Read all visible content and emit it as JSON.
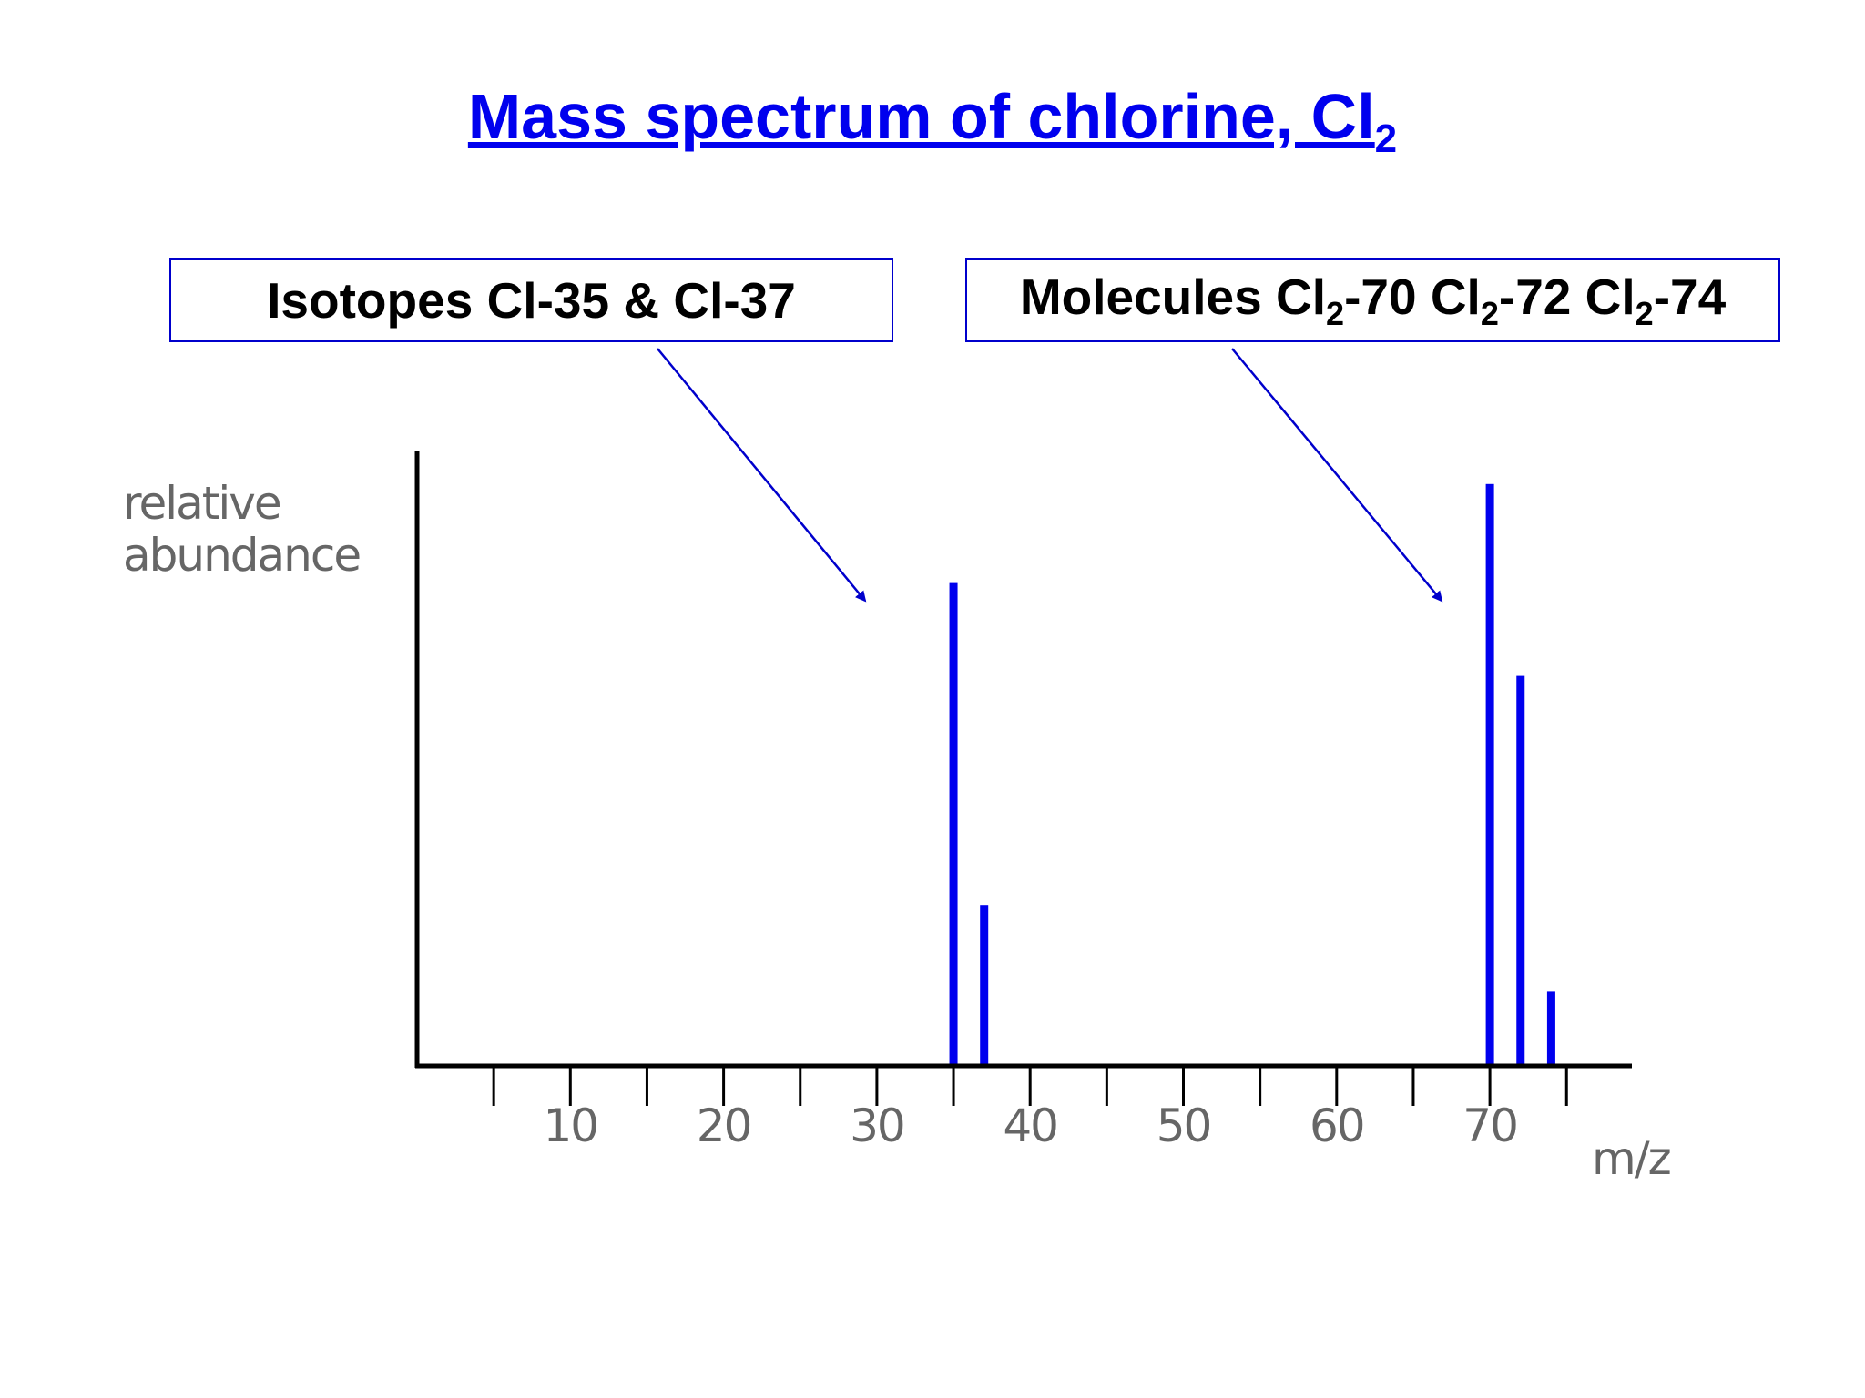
{
  "title": {
    "main": "Mass spectrum of chlorine, Cl",
    "sub": "2"
  },
  "callouts": {
    "left": {
      "text": "Isotopes Cl-35 & Cl-37"
    },
    "right": {
      "parts": [
        "Molecules Cl",
        "2",
        "-70 Cl",
        "2",
        "-72 Cl",
        "2",
        "-74"
      ]
    }
  },
  "colors": {
    "title": "#0000ee",
    "bars": "#0000ee",
    "arrows": "#0000cc",
    "axis": "#000000"
  },
  "chart_data": {
    "type": "bar",
    "title": "Mass spectrum of chlorine, Cl2",
    "xlabel": "m/z",
    "ylabel_lines": [
      "relative",
      "abundance"
    ],
    "xlim": [
      0,
      80
    ],
    "ylim": [
      0,
      100
    ],
    "xticks_major": [
      10,
      20,
      30,
      40,
      50,
      60,
      70
    ],
    "xticks_minor": [
      5,
      15,
      25,
      35,
      45,
      55,
      65,
      75
    ],
    "x": [
      35,
      37,
      70,
      72,
      74
    ],
    "values": [
      78,
      26,
      94,
      63,
      12
    ],
    "grid": false
  }
}
